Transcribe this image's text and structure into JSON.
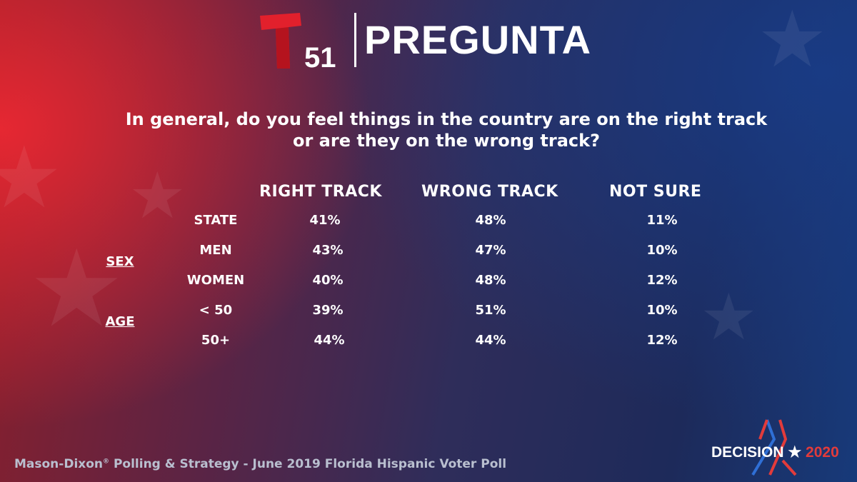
{
  "brand": {
    "logo_number": "51",
    "title": "PREGUNTA"
  },
  "question": {
    "line1": "In general, do you feel things in the country are on the right track",
    "line2": "or are they on the wrong track?"
  },
  "table": {
    "columns": [
      "RIGHT TRACK",
      "WRONG TRACK",
      "NOT SURE"
    ],
    "groups": {
      "sex": "SEX",
      "age": "AGE"
    },
    "rows": [
      {
        "label": "STATE",
        "values": [
          "41%",
          "48%",
          "11%"
        ]
      },
      {
        "label": "MEN",
        "values": [
          "43%",
          "47%",
          "10%"
        ]
      },
      {
        "label": "WOMEN",
        "values": [
          "40%",
          "48%",
          "12%"
        ]
      },
      {
        "label": "< 50",
        "values": [
          "39%",
          "51%",
          "10%"
        ]
      },
      {
        "label": "50+",
        "values": [
          "44%",
          "44%",
          "12%"
        ]
      }
    ]
  },
  "footer": {
    "source_prefix": "Mason-Dixon",
    "source_mark": "®",
    "source_rest": " Polling & Strategy - June 2019 Florida Hispanic Voter Poll"
  },
  "badge": {
    "word": "DECISION",
    "star": "★",
    "year": "2020"
  },
  "colors": {
    "logo_red": "#e2202c",
    "accent_red": "#e23b3b",
    "accent_blue": "#2f6fd6"
  }
}
